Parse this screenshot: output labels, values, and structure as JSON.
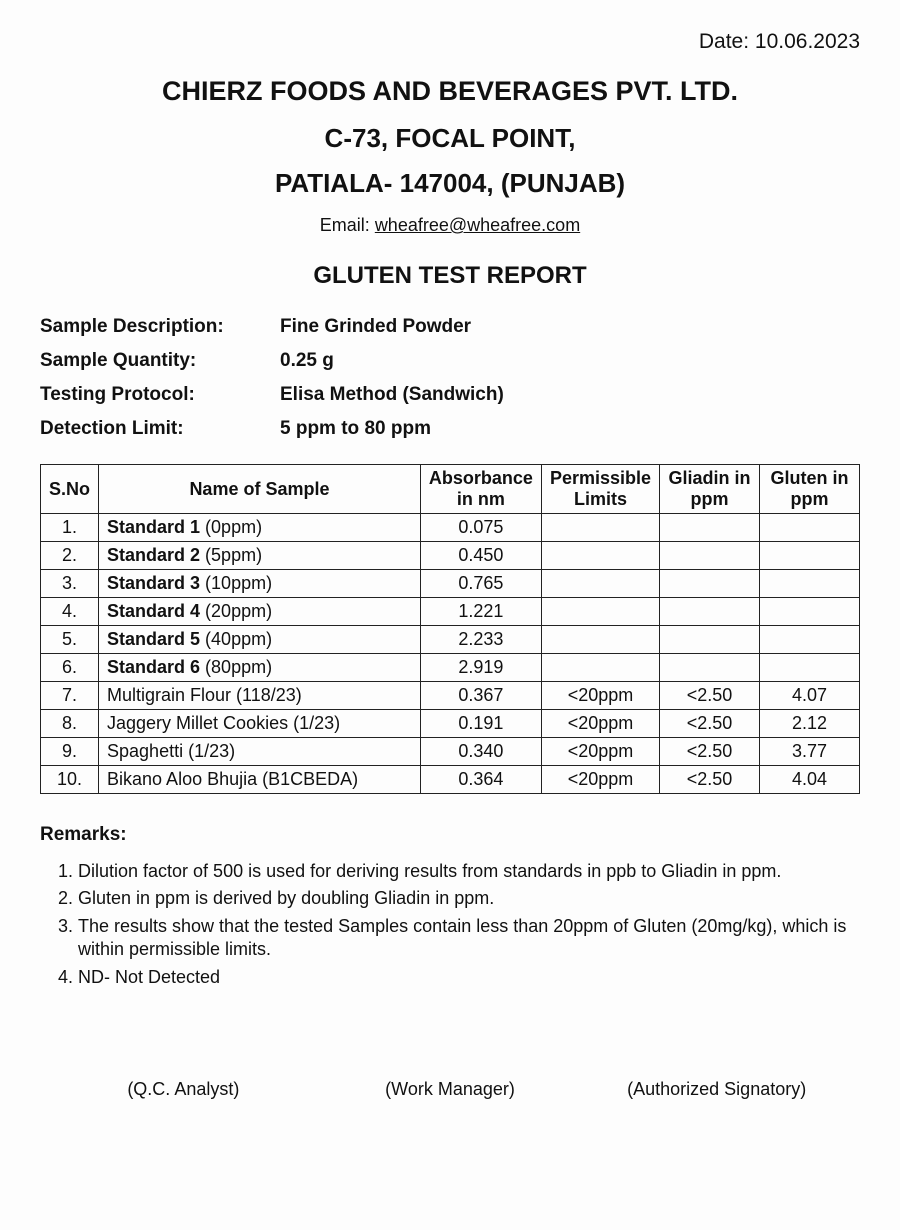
{
  "date_prefix": "Date: ",
  "date_value": "10.06.2023",
  "company_name": "CHIERZ FOODS AND BEVERAGES PVT. LTD.",
  "address_line1": "C-73, FOCAL POINT,",
  "address_line2": "PATIALA- 147004, (PUNJAB)",
  "email_prefix": "Email: ",
  "email": "wheafree@wheafree.com",
  "report_title": "GLUTEN TEST REPORT",
  "meta": [
    {
      "label": "Sample Description:",
      "value": "Fine Grinded Powder"
    },
    {
      "label": "Sample Quantity:",
      "value": "0.25 g"
    },
    {
      "label": "Testing Protocol:",
      "value": "Elisa Method (Sandwich)"
    },
    {
      "label": "Detection Limit:",
      "value": "5 ppm to 80 ppm"
    }
  ],
  "table": {
    "headers": {
      "sno": "S.No",
      "name": "Name of Sample",
      "absorbance": "Absorbance in nm",
      "permissible": "Permissible Limits",
      "gliadin": "Gliadin in ppm",
      "gluten": "Gluten in ppm"
    },
    "rows": [
      {
        "sno": "1.",
        "name_bold": "Standard 1",
        "name_rest": " (0ppm)",
        "abs": "0.075",
        "perm": "",
        "glia": "",
        "glut": ""
      },
      {
        "sno": "2.",
        "name_bold": "Standard 2",
        "name_rest": " (5ppm)",
        "abs": "0.450",
        "perm": "",
        "glia": "",
        "glut": ""
      },
      {
        "sno": "3.",
        "name_bold": "Standard 3",
        "name_rest": " (10ppm)",
        "abs": "0.765",
        "perm": "",
        "glia": "",
        "glut": ""
      },
      {
        "sno": "4.",
        "name_bold": "Standard 4",
        "name_rest": " (20ppm)",
        "abs": "1.221",
        "perm": "",
        "glia": "",
        "glut": ""
      },
      {
        "sno": "5.",
        "name_bold": "Standard 5",
        "name_rest": " (40ppm)",
        "abs": "2.233",
        "perm": "",
        "glia": "",
        "glut": ""
      },
      {
        "sno": "6.",
        "name_bold": "Standard 6",
        "name_rest": " (80ppm)",
        "abs": "2.919",
        "perm": "",
        "glia": "",
        "glut": ""
      },
      {
        "sno": "7.",
        "name_bold": "",
        "name_rest": "Multigrain Flour (118/23)",
        "abs": "0.367",
        "perm": "<20ppm",
        "glia": "<2.50",
        "glut": "4.07"
      },
      {
        "sno": "8.",
        "name_bold": "",
        "name_rest": "Jaggery Millet Cookies (1/23)",
        "abs": "0.191",
        "perm": "<20ppm",
        "glia": "<2.50",
        "glut": "2.12"
      },
      {
        "sno": "9.",
        "name_bold": "",
        "name_rest": "Spaghetti (1/23)",
        "abs": "0.340",
        "perm": "<20ppm",
        "glia": "<2.50",
        "glut": "3.77"
      },
      {
        "sno": "10.",
        "name_bold": "",
        "name_rest": "Bikano Aloo Bhujia (B1CBEDA)",
        "abs": "0.364",
        "perm": "<20ppm",
        "glia": "<2.50",
        "glut": "4.04"
      }
    ]
  },
  "remarks_title": "Remarks:",
  "remarks": [
    "Dilution factor of 500 is used for deriving results from standards in ppb to Gliadin in ppm.",
    "Gluten in ppm is derived by doubling Gliadin in ppm.",
    "The results show that the tested Samples contain less than 20ppm of Gluten (20mg/kg), which is within permissible limits.",
    "ND- Not Detected"
  ],
  "signatures": [
    "(Q.C. Analyst)",
    "(Work Manager)",
    "(Authorized Signatory)"
  ]
}
